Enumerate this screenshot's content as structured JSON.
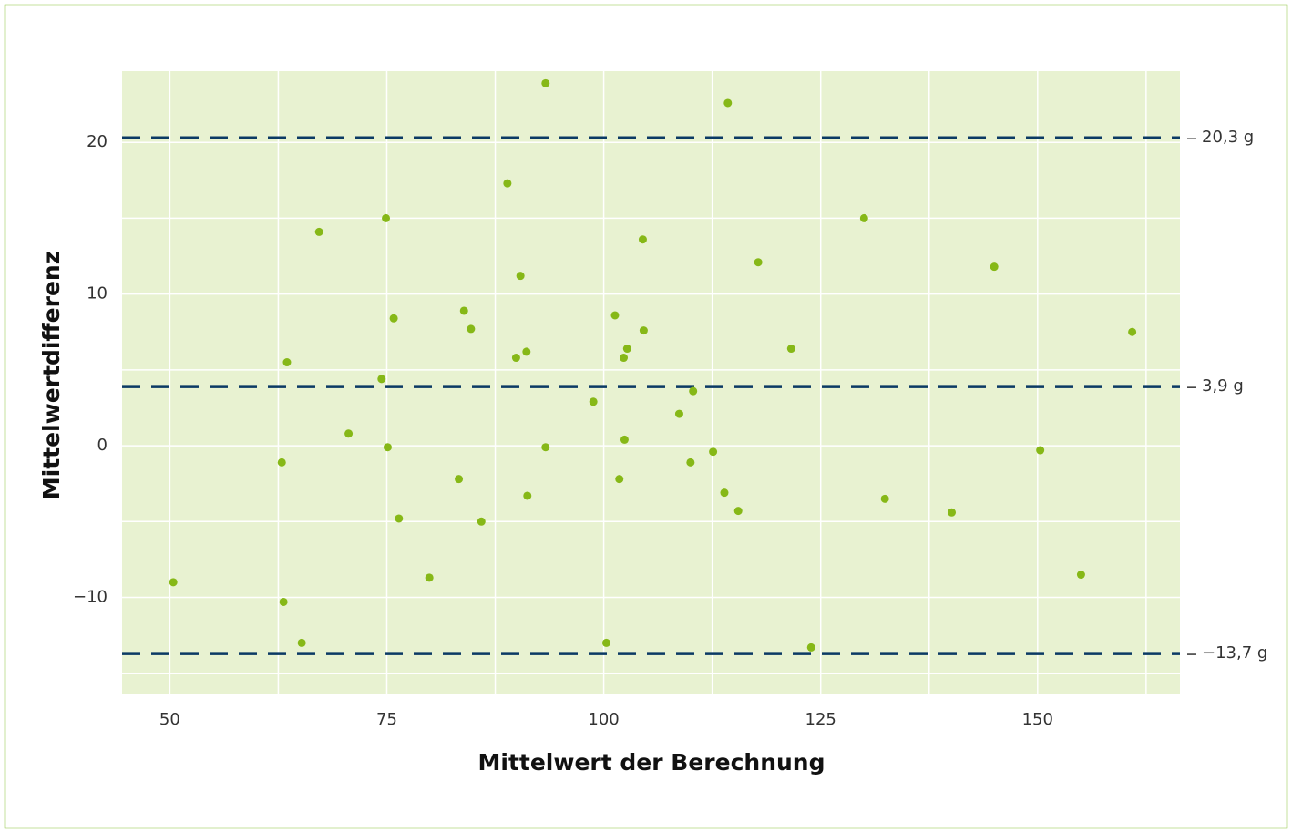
{
  "chart_data": {
    "type": "scatter",
    "xlabel": "Mittelwert der Berechnung",
    "ylabel": "Mittelwertdifferenz",
    "color": "#86b817",
    "x": [
      50.4,
      62.9,
      63.1,
      63.5,
      65.2,
      67.2,
      70.6,
      74.4,
      74.9,
      75.1,
      75.8,
      76.4,
      79.9,
      83.3,
      83.9,
      84.7,
      85.9,
      88.9,
      89.9,
      90.4,
      91.1,
      91.2,
      93.3,
      93.3,
      98.8,
      100.3,
      101.3,
      101.8,
      102.3,
      102.4,
      102.7,
      104.5,
      104.6,
      108.7,
      110.0,
      110.3,
      112.6,
      113.9,
      114.3,
      115.5,
      117.8,
      121.6,
      123.9,
      130.0,
      132.4,
      140.1,
      145.0,
      150.3,
      155.0,
      160.9
    ],
    "values": [
      -9.0,
      -1.1,
      -10.3,
      5.5,
      -13.0,
      14.1,
      0.8,
      4.4,
      15.0,
      -0.1,
      8.4,
      -4.8,
      -8.7,
      -2.2,
      8.9,
      7.7,
      -5.0,
      17.3,
      5.8,
      11.2,
      6.2,
      -3.3,
      23.9,
      -0.1,
      2.9,
      -13.0,
      8.6,
      -2.2,
      5.8,
      0.4,
      6.4,
      13.6,
      7.6,
      2.1,
      -1.1,
      3.6,
      -0.4,
      -3.1,
      22.6,
      -4.3,
      12.1,
      6.4,
      -13.3,
      15.0,
      -3.5,
      -4.4,
      11.8,
      -0.3,
      -8.5,
      7.5
    ],
    "xlim": [
      44.5,
      166.4
    ],
    "ylim": [
      -16.4,
      24.7
    ],
    "xticks": [
      50,
      75,
      100,
      125,
      150
    ],
    "yticks": [
      {
        "value": -10,
        "label": "−10"
      },
      0,
      10,
      20
    ],
    "xticks_minor": [
      62.5,
      87.5,
      112.5,
      137.5,
      162.5
    ],
    "yticks_minor": [
      -15,
      -5,
      5,
      15
    ],
    "grid": true,
    "reference_lines": [
      {
        "value": 20.3,
        "label": "20,3 g"
      },
      {
        "value": 3.9,
        "label": "3,9 g"
      },
      {
        "value": -13.7,
        "label": "−13,7 g"
      }
    ],
    "reference_color": "#0b3a64"
  }
}
